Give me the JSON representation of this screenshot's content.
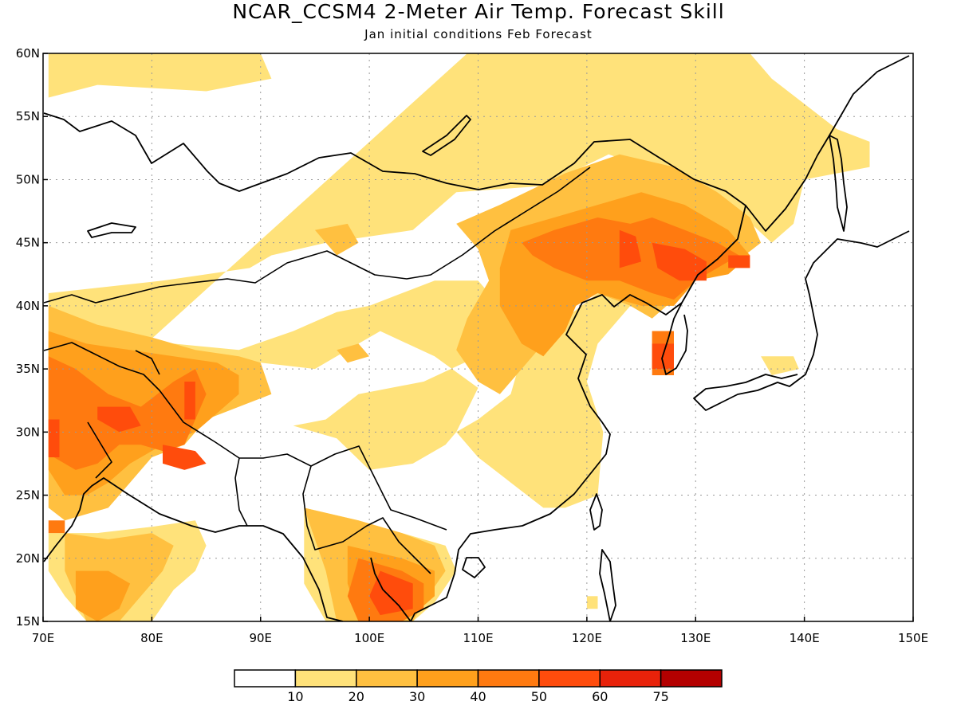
{
  "title": "NCAR_CCSM4 2-Meter Air Temp. Forecast Skill",
  "subtitle": "Jan initial conditions  Feb Forecast",
  "map": {
    "lon_range": [
      70,
      150
    ],
    "lat_range": [
      15,
      60
    ],
    "lon_ticks": [
      {
        "value": 70,
        "label": "70E"
      },
      {
        "value": 80,
        "label": "80E"
      },
      {
        "value": 90,
        "label": "90E"
      },
      {
        "value": 100,
        "label": "100E"
      },
      {
        "value": 110,
        "label": "110E"
      },
      {
        "value": 120,
        "label": "120E"
      },
      {
        "value": 130,
        "label": "130E"
      },
      {
        "value": 140,
        "label": "140E"
      },
      {
        "value": 150,
        "label": "150E"
      }
    ],
    "lat_ticks": [
      {
        "value": 15,
        "label": "15N"
      },
      {
        "value": 20,
        "label": "20N"
      },
      {
        "value": 25,
        "label": "25N"
      },
      {
        "value": 30,
        "label": "30N"
      },
      {
        "value": 35,
        "label": "35N"
      },
      {
        "value": 40,
        "label": "40N"
      },
      {
        "value": 45,
        "label": "45N"
      },
      {
        "value": 50,
        "label": "50N"
      },
      {
        "value": 55,
        "label": "55N"
      },
      {
        "value": 60,
        "label": "60N"
      }
    ],
    "grid": "dotted"
  },
  "colorbar": {
    "colors": [
      "#ffffff",
      "#ffe27a",
      "#ffc040",
      "#ffa01c",
      "#ff7a10",
      "#ff4c0c",
      "#e8220a",
      "#b40000"
    ],
    "labels": [
      "10",
      "20",
      "30",
      "40",
      "50",
      "60",
      "75"
    ]
  },
  "skill_regions": [
    {
      "level": 1,
      "points": [
        [
          70.5,
          60
        ],
        [
          90,
          60
        ],
        [
          91,
          58
        ],
        [
          85,
          57
        ],
        [
          75,
          57.5
        ],
        [
          70.5,
          56.5
        ]
      ]
    },
    {
      "level": 1,
      "points": [
        [
          109,
          60
        ],
        [
          135,
          60
        ],
        [
          137,
          58
        ],
        [
          140,
          56
        ],
        [
          143,
          54
        ],
        [
          146,
          53
        ],
        [
          146,
          51
        ],
        [
          140,
          50
        ],
        [
          139,
          46.5
        ],
        [
          137,
          45
        ],
        [
          132,
          49
        ],
        [
          122,
          52
        ],
        [
          116,
          49.5
        ],
        [
          108,
          49
        ],
        [
          104,
          46
        ],
        [
          96,
          45
        ],
        [
          91,
          44
        ],
        [
          89,
          43
        ],
        [
          81,
          42
        ],
        [
          70.5,
          41
        ],
        [
          70.5,
          36
        ],
        [
          72,
          34
        ],
        [
          76,
          37.5
        ],
        [
          82,
          37
        ],
        [
          88,
          36.5
        ],
        [
          93,
          38
        ],
        [
          97,
          39.5
        ],
        [
          100,
          40
        ],
        [
          103,
          41
        ],
        [
          106,
          42
        ],
        [
          110,
          42
        ],
        [
          112,
          40
        ],
        [
          112,
          37
        ],
        [
          110,
          36
        ],
        [
          105,
          34
        ],
        [
          99,
          33
        ],
        [
          96,
          31
        ],
        [
          93,
          30.5
        ],
        [
          97,
          29.5
        ],
        [
          100,
          27
        ],
        [
          104,
          27.5
        ],
        [
          107,
          29
        ],
        [
          108,
          30
        ],
        [
          110,
          28
        ],
        [
          113,
          26
        ],
        [
          116,
          24
        ],
        [
          118,
          24
        ],
        [
          121,
          25
        ],
        [
          121.5,
          30
        ],
        [
          120,
          34
        ],
        [
          121,
          37
        ],
        [
          124,
          40
        ],
        [
          121,
          41
        ],
        [
          118,
          39
        ],
        [
          117,
          37
        ],
        [
          114,
          36
        ],
        [
          113,
          33
        ],
        [
          110,
          31
        ],
        [
          108,
          30
        ],
        [
          110,
          33.5
        ],
        [
          106,
          36
        ],
        [
          101,
          38
        ],
        [
          98,
          36.5
        ],
        [
          95,
          35
        ],
        [
          90,
          35.5
        ],
        [
          87,
          36
        ],
        [
          83,
          36.5
        ],
        [
          80,
          35
        ],
        [
          78,
          37
        ],
        [
          75,
          36
        ],
        [
          72,
          33
        ],
        [
          70.5,
          30
        ]
      ]
    },
    {
      "level": 1,
      "points": [
        [
          94,
          24
        ],
        [
          99,
          23
        ],
        [
          103,
          22
        ],
        [
          107,
          21
        ],
        [
          108,
          19
        ],
        [
          106,
          16.5
        ],
        [
          104,
          15
        ],
        [
          96,
          15
        ],
        [
          94,
          18
        ]
      ]
    },
    {
      "level": 1,
      "points": [
        [
          70.5,
          22
        ],
        [
          75,
          22
        ],
        [
          80,
          22.5
        ],
        [
          84,
          23
        ],
        [
          85,
          21
        ],
        [
          84,
          19
        ],
        [
          82,
          17.5
        ],
        [
          80,
          15
        ],
        [
          74,
          15
        ],
        [
          72,
          17
        ],
        [
          70.5,
          19
        ]
      ]
    },
    {
      "level": 1,
      "points": [
        [
          136,
          36
        ],
        [
          139,
          36
        ],
        [
          139.5,
          35
        ],
        [
          137,
          34.5
        ]
      ]
    },
    {
      "level": 1,
      "points": [
        [
          120,
          16
        ],
        [
          121,
          16
        ],
        [
          121,
          17
        ],
        [
          120,
          17
        ]
      ]
    },
    {
      "level": 2,
      "points": [
        [
          112,
          48
        ],
        [
          118,
          50.5
        ],
        [
          123,
          52
        ],
        [
          128,
          51
        ],
        [
          132,
          49
        ],
        [
          135,
          47
        ],
        [
          136,
          45
        ],
        [
          133,
          43
        ],
        [
          130,
          42.5
        ],
        [
          128,
          40.5
        ],
        [
          126,
          39
        ],
        [
          124,
          40
        ],
        [
          121,
          41
        ],
        [
          118,
          40
        ],
        [
          116,
          37
        ],
        [
          114,
          35
        ],
        [
          112,
          33
        ],
        [
          110,
          34
        ],
        [
          108,
          36.5
        ],
        [
          109,
          39
        ],
        [
          111,
          42
        ],
        [
          110,
          44.5
        ],
        [
          108,
          46.5
        ]
      ]
    },
    {
      "level": 2,
      "points": [
        [
          70.5,
          40
        ],
        [
          75,
          38.5
        ],
        [
          80,
          37.5
        ],
        [
          84,
          36.5
        ],
        [
          88,
          36
        ],
        [
          90,
          35.5
        ],
        [
          91,
          33
        ],
        [
          88,
          32
        ],
        [
          85,
          31
        ],
        [
          83,
          29
        ],
        [
          80,
          28
        ],
        [
          78,
          26
        ],
        [
          76,
          24
        ],
        [
          72,
          23
        ],
        [
          70.5,
          24
        ]
      ]
    },
    {
      "level": 2,
      "points": [
        [
          94,
          24
        ],
        [
          99,
          23
        ],
        [
          103,
          22
        ],
        [
          106,
          21
        ],
        [
          107,
          19
        ],
        [
          105,
          16.5
        ],
        [
          104,
          15
        ],
        [
          97,
          15
        ],
        [
          96,
          19
        ]
      ]
    },
    {
      "level": 2,
      "points": [
        [
          72,
          22
        ],
        [
          76,
          21.5
        ],
        [
          80,
          22
        ],
        [
          82,
          21
        ],
        [
          81,
          19
        ],
        [
          79,
          17
        ],
        [
          77,
          15
        ],
        [
          74,
          15
        ],
        [
          73,
          17
        ],
        [
          72,
          19
        ]
      ]
    },
    {
      "level": 2,
      "points": [
        [
          95,
          46
        ],
        [
          98,
          46.5
        ],
        [
          99,
          45
        ],
        [
          97,
          44
        ]
      ]
    },
    {
      "level": 2,
      "points": [
        [
          97,
          36.5
        ],
        [
          99,
          37
        ],
        [
          100,
          36
        ],
        [
          98,
          35.5
        ]
      ]
    },
    {
      "level": 3,
      "points": [
        [
          113,
          46
        ],
        [
          117,
          47
        ],
        [
          121,
          48
        ],
        [
          125,
          49
        ],
        [
          129,
          48
        ],
        [
          133,
          46
        ],
        [
          135,
          44
        ],
        [
          133,
          42.5
        ],
        [
          130,
          42
        ],
        [
          128,
          40
        ],
        [
          125,
          40
        ],
        [
          121,
          41
        ],
        [
          119,
          40
        ],
        [
          118,
          38
        ],
        [
          116,
          36
        ],
        [
          114,
          37
        ],
        [
          112,
          40
        ],
        [
          112,
          43
        ]
      ]
    },
    {
      "level": 3,
      "points": [
        [
          70.5,
          38
        ],
        [
          74,
          37
        ],
        [
          78,
          36.5
        ],
        [
          82,
          36
        ],
        [
          86,
          35.5
        ],
        [
          88,
          34.5
        ],
        [
          88,
          33
        ],
        [
          86,
          31.5
        ],
        [
          84,
          30
        ],
        [
          81,
          29
        ],
        [
          78,
          27.5
        ],
        [
          76,
          26
        ],
        [
          74,
          25
        ],
        [
          72,
          25
        ],
        [
          70.5,
          27
        ]
      ]
    },
    {
      "level": 3,
      "points": [
        [
          98,
          21
        ],
        [
          103,
          20
        ],
        [
          106,
          19
        ],
        [
          106,
          17
        ],
        [
          104,
          15.5
        ],
        [
          99,
          15.5
        ],
        [
          98,
          18
        ]
      ]
    },
    {
      "level": 3,
      "points": [
        [
          73,
          19
        ],
        [
          76,
          19
        ],
        [
          78,
          18
        ],
        [
          77,
          16
        ],
        [
          75,
          15
        ],
        [
          73,
          16
        ]
      ]
    },
    {
      "level": 3,
      "points": [
        [
          126,
          38
        ],
        [
          128,
          38
        ],
        [
          128,
          35
        ],
        [
          126,
          35
        ]
      ]
    },
    {
      "level": 4,
      "points": [
        [
          114,
          45
        ],
        [
          117,
          46
        ],
        [
          121,
          47
        ],
        [
          124,
          46.5
        ],
        [
          126,
          47
        ],
        [
          129,
          46
        ],
        [
          132,
          45
        ],
        [
          134,
          44
        ],
        [
          132,
          43
        ],
        [
          130,
          42
        ],
        [
          128,
          40.5
        ],
        [
          126,
          41
        ],
        [
          123,
          42
        ],
        [
          120,
          42
        ],
        [
          117,
          43
        ],
        [
          115,
          44
        ]
      ]
    },
    {
      "level": 4,
      "points": [
        [
          70.5,
          36
        ],
        [
          73,
          35
        ],
        [
          76,
          33
        ],
        [
          79,
          32
        ],
        [
          82,
          34
        ],
        [
          84,
          35
        ],
        [
          85,
          33
        ],
        [
          84,
          31
        ],
        [
          83,
          29
        ],
        [
          81,
          28.5
        ],
        [
          79,
          29
        ],
        [
          77,
          29
        ],
        [
          75,
          27.5
        ],
        [
          73,
          27
        ],
        [
          71,
          28
        ],
        [
          70.5,
          30
        ]
      ]
    },
    {
      "level": 4,
      "points": [
        [
          99,
          20
        ],
        [
          103,
          19
        ],
        [
          105,
          18
        ],
        [
          105,
          16
        ],
        [
          103,
          15
        ],
        [
          99,
          15
        ],
        [
          98,
          17
        ]
      ]
    },
    {
      "level": 4,
      "points": [
        [
          126,
          38
        ],
        [
          128,
          38
        ],
        [
          128,
          34.5
        ],
        [
          126,
          34.5
        ]
      ]
    },
    {
      "level": 4,
      "points": [
        [
          70.5,
          23
        ],
        [
          72,
          23
        ],
        [
          72,
          22
        ],
        [
          70.5,
          22
        ]
      ]
    },
    {
      "level": 5,
      "points": [
        [
          123,
          46
        ],
        [
          124.5,
          45.5
        ],
        [
          125,
          43.5
        ],
        [
          123,
          43
        ]
      ]
    },
    {
      "level": 5,
      "points": [
        [
          126,
          45
        ],
        [
          129,
          44.5
        ],
        [
          131,
          43.5
        ],
        [
          131,
          42
        ],
        [
          128.5,
          42
        ],
        [
          126.5,
          43
        ]
      ]
    },
    {
      "level": 5,
      "points": [
        [
          133,
          44
        ],
        [
          135,
          44
        ],
        [
          135,
          43
        ],
        [
          133,
          43
        ]
      ]
    },
    {
      "level": 5,
      "points": [
        [
          126,
          37
        ],
        [
          128,
          37
        ],
        [
          128,
          35
        ],
        [
          126,
          35
        ]
      ]
    },
    {
      "level": 5,
      "points": [
        [
          75,
          32
        ],
        [
          78,
          32
        ],
        [
          79,
          30.5
        ],
        [
          77,
          30
        ],
        [
          75,
          31
        ]
      ]
    },
    {
      "level": 5,
      "points": [
        [
          81,
          29
        ],
        [
          84,
          28.5
        ],
        [
          85,
          27.5
        ],
        [
          83,
          27
        ],
        [
          81,
          27.5
        ]
      ]
    },
    {
      "level": 5,
      "points": [
        [
          83,
          34
        ],
        [
          84,
          34
        ],
        [
          84,
          31
        ],
        [
          83,
          31
        ]
      ]
    },
    {
      "level": 5,
      "points": [
        [
          101,
          19
        ],
        [
          104,
          18
        ],
        [
          104,
          16
        ],
        [
          101,
          15.5
        ],
        [
          100,
          17
        ]
      ]
    },
    {
      "level": 5,
      "points": [
        [
          70.5,
          31
        ],
        [
          71.5,
          31
        ],
        [
          71.5,
          28
        ],
        [
          70.5,
          28
        ]
      ]
    }
  ]
}
